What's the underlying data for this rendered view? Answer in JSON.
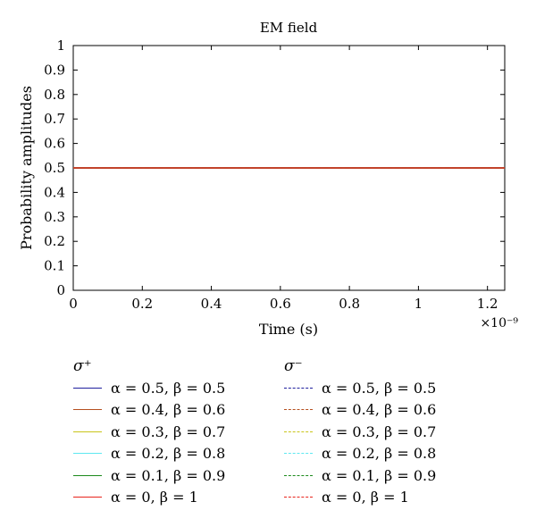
{
  "chart_data": {
    "type": "line",
    "title": "EM field",
    "xlabel": "Time (s)",
    "ylabel": "Probability amplitudes",
    "x_exponent_label": "×10⁻⁹",
    "xlim": [
      0,
      1.25
    ],
    "ylim": [
      0,
      1
    ],
    "x_ticks": [
      0,
      0.2,
      0.4,
      0.6,
      0.8,
      1,
      1.2
    ],
    "x_tick_labels": [
      "0",
      "0.2",
      "0.4",
      "0.6",
      "0.8",
      "1",
      "1.2"
    ],
    "y_ticks": [
      0,
      0.1,
      0.2,
      0.3,
      0.4,
      0.5,
      0.6,
      0.7,
      0.8,
      0.9,
      1
    ],
    "y_tick_labels": [
      "0",
      "0.1",
      "0.2",
      "0.3",
      "0.4",
      "0.5",
      "0.6",
      "0.7",
      "0.8",
      "0.9",
      "1"
    ],
    "grid": false,
    "legend_position": "below",
    "legend_groups": [
      {
        "heading": "σ⁺",
        "style": "solid",
        "series": [
          {
            "name": "α = 0.5, β = 0.5",
            "color": "#1f1f9e",
            "x": [
              0,
              1.25
            ],
            "y": [
              0.5,
              0.5
            ]
          },
          {
            "name": "α = 0.4, β = 0.6",
            "color": "#b5501f",
            "x": [
              0,
              1.25
            ],
            "y": [
              0.5,
              0.5
            ]
          },
          {
            "name": "α = 0.3, β = 0.7",
            "color": "#c9c41a",
            "x": [
              0,
              1.25
            ],
            "y": [
              0.5,
              0.5
            ]
          },
          {
            "name": "α = 0.2, β = 0.8",
            "color": "#5ee8f0",
            "x": [
              0,
              1.25
            ],
            "y": [
              0.5,
              0.5
            ]
          },
          {
            "name": "α = 0.1, β = 0.9",
            "color": "#1c8a1c",
            "x": [
              0,
              1.25
            ],
            "y": [
              0.5,
              0.5
            ]
          },
          {
            "name": "α = 0, β = 1",
            "color": "#e8241c",
            "x": [
              0,
              1.25
            ],
            "y": [
              0.5,
              0.5
            ]
          }
        ]
      },
      {
        "heading": "σ⁻",
        "style": "dashed",
        "series": [
          {
            "name": "α = 0.5, β = 0.5",
            "color": "#1f1f9e",
            "x": [
              0,
              1.25
            ],
            "y": [
              0.5,
              0.5
            ]
          },
          {
            "name": "α = 0.4, β = 0.6",
            "color": "#b5501f",
            "x": [
              0,
              1.25
            ],
            "y": [
              0.5,
              0.5
            ]
          },
          {
            "name": "α = 0.3, β = 0.7",
            "color": "#c9c41a",
            "x": [
              0,
              1.25
            ],
            "y": [
              0.5,
              0.5
            ]
          },
          {
            "name": "α = 0.2, β = 0.8",
            "color": "#5ee8f0",
            "x": [
              0,
              1.25
            ],
            "y": [
              0.5,
              0.5
            ]
          },
          {
            "name": "α = 0.1, β = 0.9",
            "color": "#1c8a1c",
            "x": [
              0,
              1.25
            ],
            "y": [
              0.5,
              0.5
            ]
          },
          {
            "name": "α = 0, β = 1",
            "color": "#e8241c",
            "x": [
              0,
              1.25
            ],
            "y": [
              0.5,
              0.5
            ]
          }
        ]
      }
    ]
  }
}
